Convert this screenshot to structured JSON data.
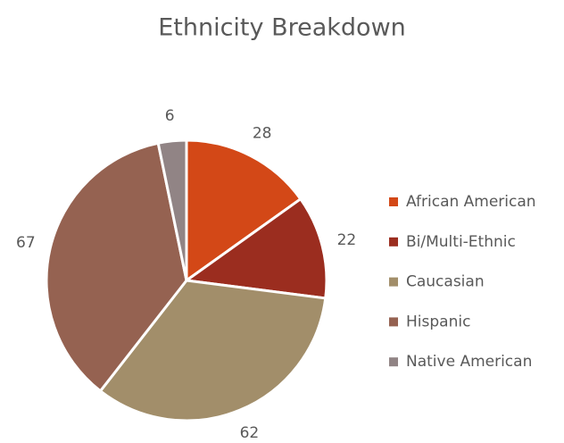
{
  "chart_data": {
    "type": "pie",
    "title": "Ethnicity Breakdown",
    "categories": [
      "African American",
      "Bi/Multi-Ethnic",
      "Caucasian",
      "Hispanic",
      "Native American"
    ],
    "values": [
      28,
      22,
      62,
      67,
      6
    ],
    "colors": [
      "#d34817",
      "#9b2d1f",
      "#a28e6a",
      "#956251",
      "#918485"
    ],
    "legend": "right"
  }
}
